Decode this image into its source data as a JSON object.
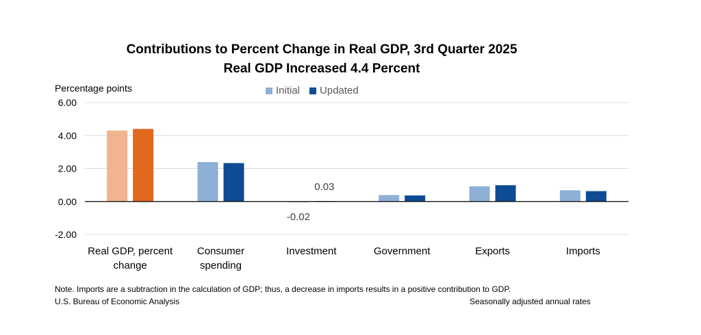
{
  "chart_data": {
    "type": "bar",
    "title": "Contributions to Percent Change in Real GDP, 3rd Quarter 2025",
    "subtitle": "Real GDP Increased 4.4 Percent",
    "ylabel": "Percentage points",
    "xlabel": "",
    "ylim": [
      -2,
      6
    ],
    "yticks": [
      "6.00",
      "4.00",
      "2.00",
      "0.00",
      "-2.00"
    ],
    "ytick_values": [
      6,
      4,
      2,
      0,
      -2
    ],
    "categories": [
      [
        "Real GDP, percent",
        "change"
      ],
      [
        "Consumer",
        "spending"
      ],
      [
        "Investment"
      ],
      [
        "Government"
      ],
      [
        "Exports"
      ],
      [
        "Imports"
      ]
    ],
    "series": [
      {
        "name": "Initial",
        "color": "#8eb0d6",
        "values": [
          4.3,
          2.39,
          -0.02,
          0.39,
          0.92,
          0.68
        ]
      },
      {
        "name": "Updated",
        "color": "#0d4c94",
        "values": [
          4.4,
          2.33,
          0.03,
          0.37,
          0.99,
          0.63
        ]
      }
    ],
    "first_category_colors": [
      "#f0b48f",
      "#e0681f"
    ],
    "data_labels": [
      {
        "category_index": 2,
        "series_index": 1,
        "text": "0.03"
      },
      {
        "category_index": 2,
        "series_index": 0,
        "text": "-0.02"
      }
    ],
    "grid": true,
    "legend_position": "top-center"
  },
  "note": "Note. Imports are a subtraction in the calculation of GDP; thus, a decrease in imports results in a positive contribution to GDP.",
  "source": "U.S. Bureau of Economic Analysis",
  "rates": "Seasonally adjusted annual rates"
}
